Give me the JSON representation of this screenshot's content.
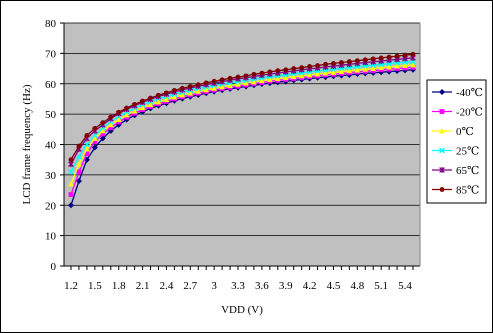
{
  "chart_data": {
    "type": "line",
    "xlabel": "VDD (V)",
    "ylabel": "LCD frame frequency (Hz)",
    "ylim": [
      0,
      80
    ],
    "yticks": [
      0,
      10,
      20,
      30,
      40,
      50,
      60,
      70,
      80
    ],
    "xtick_labels": [
      "1.2",
      "1.5",
      "1.8",
      "2.1",
      "2.4",
      "2.7",
      "3",
      "3.3",
      "3.6",
      "3.9",
      "4.2",
      "4.5",
      "4.8",
      "5.1",
      "5.4"
    ],
    "grid": "horizontal",
    "plot_background": "#c0c0c0",
    "legend": "right",
    "x": [
      1.2,
      1.3,
      1.4,
      1.5,
      1.6,
      1.7,
      1.8,
      1.9,
      2.0,
      2.1,
      2.2,
      2.3,
      2.4,
      2.5,
      2.6,
      2.7,
      2.8,
      2.9,
      3.0,
      3.1,
      3.2,
      3.3,
      3.4,
      3.5,
      3.6,
      3.7,
      3.8,
      3.9,
      4.0,
      4.1,
      4.2,
      4.3,
      4.4,
      4.5,
      4.6,
      4.7,
      4.8,
      4.9,
      5.0,
      5.1,
      5.2,
      5.3,
      5.4,
      5.5
    ],
    "series": [
      {
        "name": "-40℃",
        "color": "#000080",
        "marker": "diamond",
        "values": [
          20,
          28,
          35,
          39,
          42,
          44.5,
          46.5,
          48.2,
          49.6,
          50.8,
          51.9,
          52.8,
          53.6,
          54.4,
          55.1,
          55.7,
          56.3,
          56.9,
          57.4,
          57.9,
          58.3,
          58.7,
          59.1,
          59.5,
          59.9,
          60.2,
          60.5,
          60.8,
          61.1,
          61.4,
          61.7,
          62.0,
          62.2,
          62.5,
          62.7,
          62.9,
          63.2,
          63.4,
          63.6,
          63.8,
          64.0,
          64.2,
          64.4,
          64.6
        ]
      },
      {
        "name": "-20℃",
        "color": "#ff00ff",
        "marker": "square",
        "values": [
          23.5,
          31,
          37,
          41,
          43.5,
          45.6,
          47.4,
          49,
          50.3,
          51.5,
          52.5,
          53.4,
          54.2,
          55,
          55.7,
          56.3,
          56.9,
          57.4,
          57.9,
          58.4,
          58.8,
          59.2,
          59.6,
          60,
          60.4,
          60.8,
          61.1,
          61.4,
          61.7,
          62,
          62.3,
          62.6,
          62.9,
          63.1,
          63.4,
          63.6,
          63.9,
          64.1,
          64.3,
          64.6,
          64.8,
          65,
          65.2,
          65.4
        ]
      },
      {
        "name": "0℃",
        "color": "#ffff00",
        "marker": "triangle",
        "values": [
          27,
          33.5,
          38.5,
          42,
          44.5,
          46.5,
          48.2,
          49.7,
          51,
          52.1,
          53.1,
          54,
          54.8,
          55.6,
          56.3,
          56.9,
          57.5,
          58,
          58.5,
          59,
          59.4,
          59.8,
          60.2,
          60.6,
          61,
          61.4,
          61.7,
          62,
          62.3,
          62.6,
          62.9,
          63.2,
          63.5,
          63.7,
          64,
          64.3,
          64.5,
          64.8,
          65,
          65.3,
          65.5,
          65.8,
          66,
          66.2
        ]
      },
      {
        "name": "25℃",
        "color": "#00ffff",
        "marker": "x",
        "values": [
          31,
          36,
          40,
          43,
          45.5,
          47.5,
          49.2,
          50.7,
          52,
          53.1,
          54.1,
          55,
          55.8,
          56.5,
          57.2,
          57.8,
          58.4,
          58.9,
          59.4,
          59.9,
          60.3,
          60.7,
          61.1,
          61.5,
          61.9,
          62.3,
          62.6,
          62.9,
          63.3,
          63.6,
          63.9,
          64.2,
          64.5,
          64.8,
          65.1,
          65.3,
          65.6,
          65.9,
          66.1,
          66.4,
          66.6,
          66.9,
          67.1,
          67.3
        ]
      },
      {
        "name": "65℃",
        "color": "#800080",
        "marker": "star",
        "values": [
          33.5,
          38.5,
          42,
          44.5,
          46.5,
          48.5,
          50.2,
          51.6,
          52.8,
          53.9,
          54.9,
          55.8,
          56.6,
          57.3,
          58,
          58.6,
          59.2,
          59.7,
          60.2,
          60.7,
          61.2,
          61.6,
          62,
          62.4,
          62.8,
          63.2,
          63.5,
          63.9,
          64.2,
          64.6,
          64.9,
          65.2,
          65.5,
          65.8,
          66.1,
          66.4,
          66.7,
          67,
          67.2,
          67.5,
          67.8,
          68,
          68.3,
          68.5
        ]
      },
      {
        "name": "85℃",
        "color": "#800000",
        "marker": "circle",
        "values": [
          35,
          39.5,
          43,
          45.3,
          47.2,
          49,
          50.6,
          52,
          53.2,
          54.3,
          55.3,
          56.2,
          57,
          57.8,
          58.5,
          59.1,
          59.7,
          60.3,
          60.8,
          61.3,
          61.8,
          62.2,
          62.6,
          63.1,
          63.5,
          63.9,
          64.3,
          64.6,
          65,
          65.3,
          65.7,
          66,
          66.4,
          66.7,
          67,
          67.3,
          67.6,
          67.9,
          68.2,
          68.5,
          68.8,
          69.1,
          69.4,
          69.7
        ]
      }
    ]
  }
}
